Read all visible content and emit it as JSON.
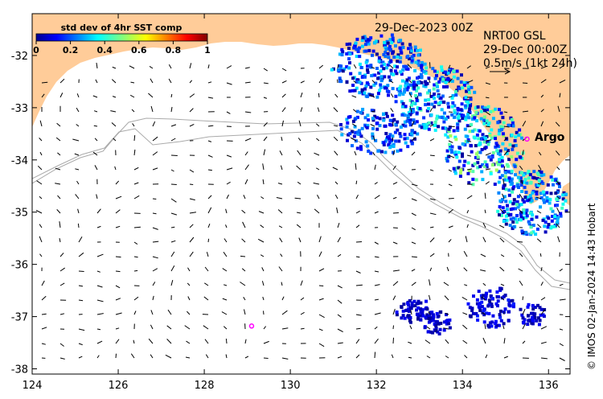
{
  "map": {
    "lon_range": [
      124,
      136.5
    ],
    "lat_range": [
      -38.1,
      -31.2
    ],
    "x_ticks": [
      124,
      126,
      128,
      130,
      132,
      134,
      136
    ],
    "x_tick_labels": [
      "124",
      "126",
      "128",
      "130",
      "132",
      "134",
      "136"
    ],
    "y_ticks": [
      -32,
      -33,
      -34,
      -35,
      -36,
      -37,
      -38
    ],
    "y_tick_labels": [
      "-32",
      "-33",
      "-34",
      "-35",
      "-36",
      "-37",
      "-38"
    ],
    "land_color": "#ffcc99",
    "contour_color": "#aaaaaa",
    "arrow_color": "#000000"
  },
  "colorbar": {
    "title": "std dev of 4hr SST comp",
    "tick_labels": [
      "0",
      "0.2",
      "0.4",
      "0.6",
      "0.8",
      "1"
    ],
    "range": [
      0,
      1
    ]
  },
  "header": {
    "date": "29-Dec-2023 00Z",
    "product": "NRT00 GSL",
    "time": "29-Dec 00:00Z",
    "scale": "0.5m/s (1kt 24h)"
  },
  "markers": [
    {
      "name": "Argo",
      "lon": 135.5,
      "lat": -33.6,
      "color": "#ff00ff",
      "label": "Argo"
    },
    {
      "name": "float",
      "lon": 129.1,
      "lat": -37.18,
      "color": "#ff00ff",
      "label": ""
    }
  ],
  "credit": "© IMOS 02-Jan-2024 14:43 Hobart"
}
